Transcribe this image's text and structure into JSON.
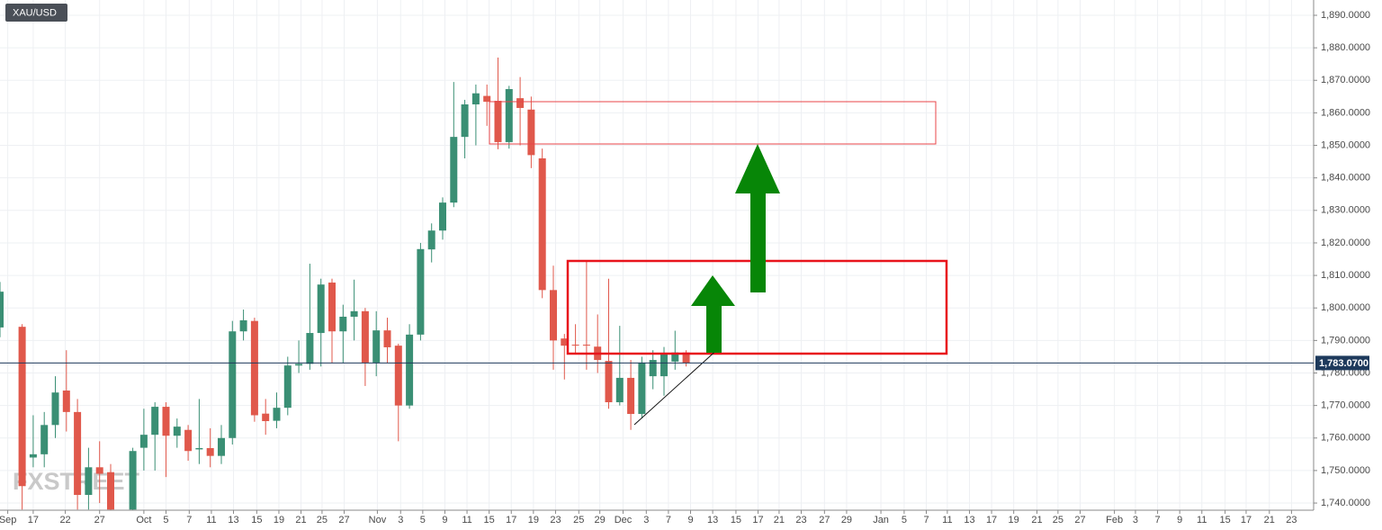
{
  "chart_data": {
    "type": "candlestick",
    "symbol": "XAU/USD",
    "watermark": "FXSTREET",
    "up_color": "#3a8f74",
    "down_color": "#e0584b",
    "x": [
      0,
      2,
      3,
      4,
      5,
      6,
      7,
      8,
      9,
      10,
      12,
      13,
      14,
      15,
      16,
      17,
      18,
      19,
      20,
      21,
      22,
      23,
      24,
      25,
      26,
      27,
      28,
      29,
      30,
      31,
      32,
      33,
      34,
      35,
      36,
      37,
      38,
      39,
      40,
      41,
      42,
      43,
      44,
      45,
      46,
      47,
      48,
      49,
      50,
      51,
      52,
      53,
      54,
      55,
      56,
      57,
      58,
      59,
      60,
      61,
      62
    ],
    "open": [
      1794,
      1794.2,
      1754,
      1755,
      1764,
      1774.6,
      1768,
      1742.5,
      1751,
      1749.5,
      1738,
      1757,
      1761,
      1769.6,
      1760.7,
      1762.5,
      1756.5,
      1756.9,
      1754.5,
      1760,
      1792.8,
      1796,
      1767.5,
      1765.3,
      1769.3,
      1782.3,
      1782.8,
      1792.3,
      1807.8,
      1792.8,
      1797.3,
      1799,
      1783.2,
      1793.1,
      1788.4,
      1770,
      1791.8,
      1818,
      1823.8,
      1832.4,
      1852.6,
      1862.6,
      1865.2,
      1863.7,
      1851,
      1864.5,
      1861,
      1846,
      1805.5,
      1790.6,
      1788.7,
      1788.7,
      1788.1,
      1783.7,
      1771,
      1778.5,
      1767.4,
      1779,
      1779,
      1783.5,
      1786.3
    ],
    "high": [
      1808,
      1795,
      1767,
      1768,
      1779,
      1787,
      1772,
      1757,
      1759,
      1752,
      1757,
      1769,
      1771,
      1771,
      1766,
      1764,
      1772,
      1763,
      1764,
      1796,
      1799.5,
      1797,
      1772,
      1774,
      1785,
      1790,
      1813.6,
      1809,
      1809,
      1801,
      1808.7,
      1800,
      1799,
      1797,
      1789,
      1795,
      1820,
      1826,
      1834,
      1869.5,
      1864,
      1868.7,
      1868.7,
      1877,
      1868.3,
      1871,
      1865,
      1849,
      1813,
      1792,
      1795,
      1814.6,
      1798,
      1809,
      1794.5,
      1784,
      1785,
      1787,
      1788,
      1793,
      1787
    ],
    "low": [
      1791,
      1738,
      1751,
      1751,
      1760,
      1762,
      1738,
      1738,
      1740,
      1737.8,
      1737.8,
      1750,
      1750,
      1748,
      1757,
      1753,
      1752,
      1751,
      1752,
      1758,
      1790,
      1765,
      1761,
      1763,
      1767,
      1780,
      1781,
      1782,
      1783,
      1783,
      1790,
      1776,
      1779,
      1783,
      1759,
      1769,
      1790,
      1814,
      1821,
      1831,
      1846,
      1850,
      1856,
      1848.8,
      1849,
      1850,
      1843,
      1803,
      1781,
      1778,
      1786,
      1781,
      1780,
      1769,
      1770,
      1762.5,
      1766,
      1775,
      1773,
      1781,
      1782
    ],
    "close": [
      1805,
      1745.2,
      1755,
      1764,
      1774,
      1768,
      1742.5,
      1751,
      1749,
      1738,
      1756,
      1761,
      1769.6,
      1760.7,
      1763.5,
      1756,
      1756.9,
      1754.5,
      1760,
      1792.8,
      1796.2,
      1767,
      1765.2,
      1769.3,
      1782.3,
      1782.8,
      1792.3,
      1807.2,
      1792.8,
      1797.3,
      1799,
      1783.2,
      1793.1,
      1787.9,
      1770,
      1791.8,
      1818.1,
      1823.8,
      1832.4,
      1852.6,
      1862.6,
      1866,
      1863.4,
      1851,
      1867.3,
      1861.5,
      1847,
      1805.5,
      1790,
      1788.4,
      1788.5,
      1788.5,
      1784,
      1771,
      1778.5,
      1767.4,
      1783.2,
      1784,
      1785.8,
      1786.3,
      1783.07
    ],
    "last_price": 1783.07,
    "last_price_label": "1,783.0700",
    "last_price_color": "#1e3a5c",
    "xlim": [
      0,
      118.7
    ],
    "ylim": [
      1737.8,
      1894.7
    ],
    "grid": true,
    "yticks": [
      {
        "value": 1740,
        "label": "1,740.0000"
      },
      {
        "value": 1750,
        "label": "1,750.0000"
      },
      {
        "value": 1760,
        "label": "1,760.0000"
      },
      {
        "value": 1770,
        "label": "1,770.0000"
      },
      {
        "value": 1780,
        "label": "1,780.0000"
      },
      {
        "value": 1790,
        "label": "1,790.0000"
      },
      {
        "value": 1800,
        "label": "1,800.0000"
      },
      {
        "value": 1810,
        "label": "1,810.0000"
      },
      {
        "value": 1820,
        "label": "1,820.0000"
      },
      {
        "value": 1830,
        "label": "1,830.0000"
      },
      {
        "value": 1840,
        "label": "1,840.0000"
      },
      {
        "value": 1850,
        "label": "1,850.0000"
      },
      {
        "value": 1860,
        "label": "1,860.0000"
      },
      {
        "value": 1870,
        "label": "1,870.0000"
      },
      {
        "value": 1880,
        "label": "1,880.0000"
      },
      {
        "value": 1890,
        "label": "1,890.0000"
      }
    ],
    "xticks": [
      {
        "value": 0.7,
        "label": "Sep"
      },
      {
        "value": 3,
        "label": "17"
      },
      {
        "value": 5.9,
        "label": "22"
      },
      {
        "value": 9,
        "label": "27"
      },
      {
        "value": 13,
        "label": "Oct"
      },
      {
        "value": 15,
        "label": "5"
      },
      {
        "value": 17.1,
        "label": "7"
      },
      {
        "value": 19.1,
        "label": "11"
      },
      {
        "value": 21.1,
        "label": "13"
      },
      {
        "value": 23.2,
        "label": "15"
      },
      {
        "value": 25.2,
        "label": "19"
      },
      {
        "value": 27.2,
        "label": "21"
      },
      {
        "value": 29.1,
        "label": "25"
      },
      {
        "value": 31.1,
        "label": "27"
      },
      {
        "value": 34.1,
        "label": "Nov"
      },
      {
        "value": 36.2,
        "label": "3"
      },
      {
        "value": 38.2,
        "label": "5"
      },
      {
        "value": 40.2,
        "label": "9"
      },
      {
        "value": 42.2,
        "label": "11"
      },
      {
        "value": 44.2,
        "label": "15"
      },
      {
        "value": 46.2,
        "label": "17"
      },
      {
        "value": 48.2,
        "label": "19"
      },
      {
        "value": 50.2,
        "label": "23"
      },
      {
        "value": 52.3,
        "label": "25"
      },
      {
        "value": 54.2,
        "label": "29"
      },
      {
        "value": 56.3,
        "label": "Dec"
      },
      {
        "value": 58.4,
        "label": "3"
      },
      {
        "value": 60.4,
        "label": "7"
      },
      {
        "value": 62.4,
        "label": "9"
      },
      {
        "value": 64.4,
        "label": "13"
      },
      {
        "value": 66.5,
        "label": "15"
      },
      {
        "value": 68.5,
        "label": "17"
      },
      {
        "value": 70.4,
        "label": "21"
      },
      {
        "value": 72.4,
        "label": "23"
      },
      {
        "value": 74.5,
        "label": "27"
      },
      {
        "value": 76.5,
        "label": "29"
      },
      {
        "value": 79.6,
        "label": "Jan"
      },
      {
        "value": 81.7,
        "label": "5"
      },
      {
        "value": 83.7,
        "label": "7"
      },
      {
        "value": 85.6,
        "label": "11"
      },
      {
        "value": 87.6,
        "label": "13"
      },
      {
        "value": 89.6,
        "label": "17"
      },
      {
        "value": 91.6,
        "label": "19"
      },
      {
        "value": 93.7,
        "label": "21"
      },
      {
        "value": 95.6,
        "label": "25"
      },
      {
        "value": 97.6,
        "label": "27"
      },
      {
        "value": 100.7,
        "label": "Feb"
      },
      {
        "value": 102.6,
        "label": "3"
      },
      {
        "value": 104.6,
        "label": "7"
      },
      {
        "value": 106.6,
        "label": "9"
      },
      {
        "value": 108.6,
        "label": "11"
      },
      {
        "value": 110.7,
        "label": "15"
      },
      {
        "value": 112.6,
        "label": "17"
      },
      {
        "value": 114.7,
        "label": "21"
      },
      {
        "value": 116.7,
        "label": "23"
      }
    ]
  }
}
